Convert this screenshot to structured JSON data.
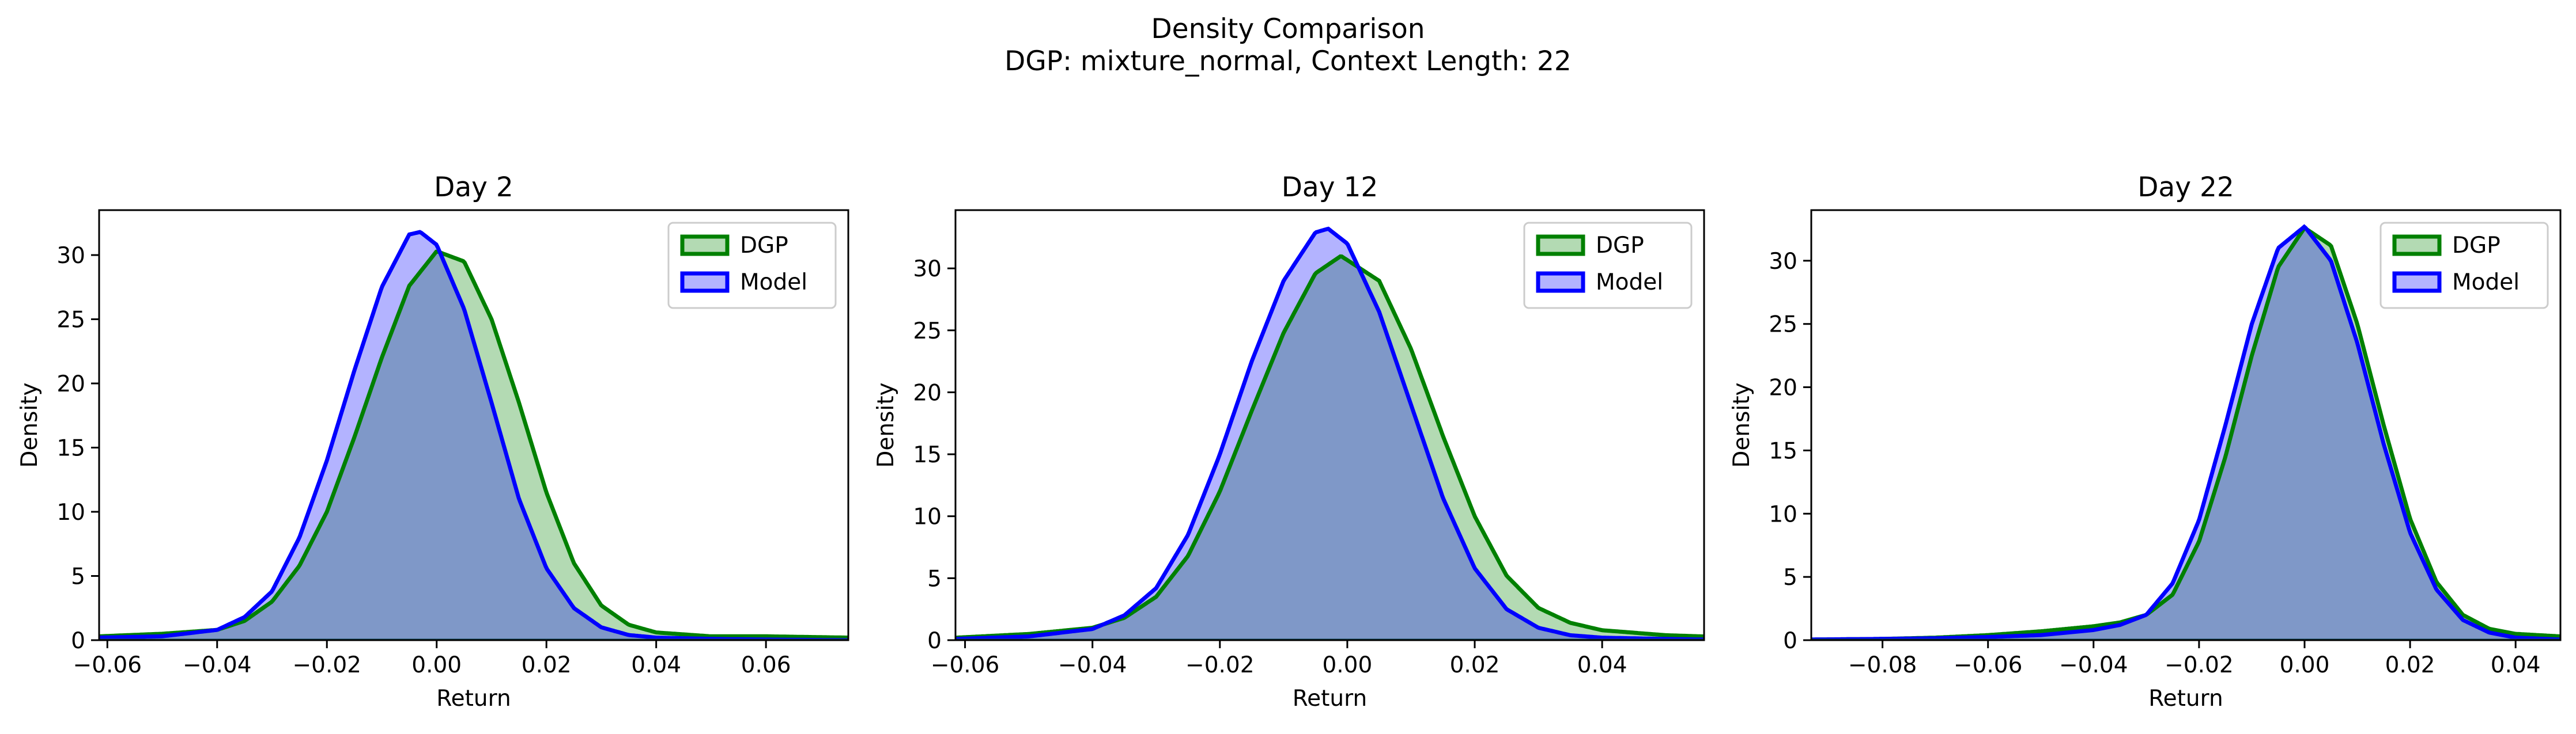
{
  "figure": {
    "title_line1": "Density Comparison",
    "title_line2": "DGP: mixture_normal, Context Length: 22"
  },
  "colors": {
    "dgp_line": "#008000",
    "dgp_fill": "#b3dab3",
    "model_line": "#0000ff",
    "model_fill": "#b3b3ff",
    "overlap_fill": "#7f98c8",
    "overlap_line": "#134f5c"
  },
  "chart_data": [
    {
      "type": "area",
      "title": "Day 2",
      "xlabel": "Return",
      "ylabel": "Density",
      "xlim": [
        -0.0615,
        0.075
      ],
      "ylim": [
        0,
        33.5
      ],
      "xticks": [
        -0.06,
        -0.04,
        -0.02,
        0.0,
        0.02,
        0.04,
        0.06
      ],
      "xtick_labels": [
        "−0.06",
        "−0.04",
        "−0.02",
        "0.00",
        "0.02",
        "0.04",
        "0.06"
      ],
      "yticks": [
        0,
        5,
        10,
        15,
        20,
        25,
        30
      ],
      "ytick_labels": [
        "0",
        "5",
        "10",
        "15",
        "20",
        "25",
        "30"
      ],
      "legend": "top-right",
      "series": [
        {
          "name": "DGP",
          "x": [
            -0.0615,
            -0.05,
            -0.04,
            -0.035,
            -0.03,
            -0.025,
            -0.02,
            -0.015,
            -0.01,
            -0.005,
            0.0,
            0.005,
            0.01,
            0.015,
            0.02,
            0.025,
            0.03,
            0.035,
            0.04,
            0.05,
            0.06,
            0.075
          ],
          "y": [
            0.3,
            0.5,
            0.8,
            1.5,
            3.0,
            5.8,
            10.0,
            15.8,
            22.0,
            27.6,
            30.3,
            29.5,
            25.0,
            18.5,
            11.5,
            6.0,
            2.7,
            1.2,
            0.6,
            0.3,
            0.3,
            0.2
          ]
        },
        {
          "name": "Model",
          "x": [
            -0.0615,
            -0.05,
            -0.04,
            -0.035,
            -0.03,
            -0.025,
            -0.02,
            -0.015,
            -0.01,
            -0.005,
            -0.003,
            0.0,
            0.005,
            0.01,
            0.015,
            0.02,
            0.025,
            0.03,
            0.035,
            0.04,
            0.05,
            0.06,
            0.075
          ],
          "y": [
            0.2,
            0.3,
            0.8,
            1.8,
            3.8,
            8.0,
            14.0,
            21.0,
            27.5,
            31.6,
            31.8,
            30.8,
            25.8,
            18.5,
            11.0,
            5.6,
            2.5,
            1.0,
            0.4,
            0.2,
            0.1,
            0.05,
            0.0
          ]
        }
      ]
    },
    {
      "type": "area",
      "title": "Day 12",
      "xlabel": "Return",
      "ylabel": "Density",
      "xlim": [
        -0.0615,
        0.056
      ],
      "ylim": [
        0,
        34.7
      ],
      "xticks": [
        -0.06,
        -0.04,
        -0.02,
        0.0,
        0.02,
        0.04
      ],
      "xtick_labels": [
        "−0.06",
        "−0.04",
        "−0.02",
        "0.00",
        "0.02",
        "0.04"
      ],
      "yticks": [
        0,
        5,
        10,
        15,
        20,
        25,
        30
      ],
      "ytick_labels": [
        "0",
        "5",
        "10",
        "15",
        "20",
        "25",
        "30"
      ],
      "legend": "top-right",
      "series": [
        {
          "name": "DGP",
          "x": [
            -0.0615,
            -0.05,
            -0.04,
            -0.035,
            -0.03,
            -0.025,
            -0.02,
            -0.015,
            -0.01,
            -0.005,
            -0.001,
            0.005,
            0.01,
            0.015,
            0.02,
            0.025,
            0.03,
            0.035,
            0.04,
            0.05,
            0.056
          ],
          "y": [
            0.2,
            0.5,
            1.0,
            1.8,
            3.5,
            6.8,
            12.0,
            18.5,
            24.8,
            29.6,
            31.0,
            29.0,
            23.5,
            16.5,
            10.0,
            5.2,
            2.6,
            1.4,
            0.8,
            0.4,
            0.3
          ]
        },
        {
          "name": "Model",
          "x": [
            -0.0615,
            -0.05,
            -0.04,
            -0.035,
            -0.03,
            -0.025,
            -0.02,
            -0.015,
            -0.01,
            -0.005,
            -0.003,
            0.0,
            0.005,
            0.01,
            0.015,
            0.02,
            0.025,
            0.03,
            0.035,
            0.04,
            0.05,
            0.056
          ],
          "y": [
            0.1,
            0.3,
            0.9,
            2.0,
            4.2,
            8.5,
            15.0,
            22.5,
            29.0,
            32.9,
            33.2,
            32.0,
            26.5,
            19.0,
            11.5,
            5.8,
            2.5,
            1.0,
            0.4,
            0.2,
            0.1,
            0.05
          ]
        }
      ]
    },
    {
      "type": "area",
      "title": "Day 22",
      "xlabel": "Return",
      "ylabel": "Density",
      "xlim": [
        -0.0935,
        0.0485
      ],
      "ylim": [
        0,
        34.0
      ],
      "xticks": [
        -0.08,
        -0.06,
        -0.04,
        -0.02,
        0.0,
        0.02,
        0.04
      ],
      "xtick_labels": [
        "−0.08",
        "−0.06",
        "−0.04",
        "−0.02",
        "0.00",
        "0.02",
        "0.04"
      ],
      "yticks": [
        0,
        5,
        10,
        15,
        20,
        25,
        30
      ],
      "ytick_labels": [
        "0",
        "5",
        "10",
        "15",
        "20",
        "25",
        "30"
      ],
      "legend": "top-right",
      "series": [
        {
          "name": "DGP",
          "x": [
            -0.0935,
            -0.08,
            -0.07,
            -0.06,
            -0.05,
            -0.04,
            -0.035,
            -0.03,
            -0.025,
            -0.02,
            -0.015,
            -0.01,
            -0.005,
            0.0,
            0.005,
            0.01,
            0.015,
            0.02,
            0.025,
            0.03,
            0.035,
            0.04,
            0.0485
          ],
          "y": [
            0.05,
            0.1,
            0.2,
            0.4,
            0.7,
            1.1,
            1.4,
            2.0,
            3.6,
            7.8,
            14.5,
            22.5,
            29.5,
            32.6,
            31.2,
            25.0,
            17.0,
            9.6,
            4.6,
            2.0,
            0.9,
            0.5,
            0.3
          ]
        },
        {
          "name": "Model",
          "x": [
            -0.0935,
            -0.08,
            -0.07,
            -0.06,
            -0.05,
            -0.04,
            -0.035,
            -0.03,
            -0.025,
            -0.02,
            -0.015,
            -0.01,
            -0.005,
            0.0,
            0.005,
            0.01,
            0.015,
            0.02,
            0.025,
            0.03,
            0.035,
            0.04,
            0.0485
          ],
          "y": [
            0.05,
            0.1,
            0.15,
            0.25,
            0.4,
            0.8,
            1.2,
            2.0,
            4.5,
            9.5,
            17.0,
            25.0,
            31.0,
            32.7,
            30.0,
            23.5,
            15.5,
            8.5,
            4.0,
            1.6,
            0.6,
            0.2,
            0.05
          ]
        }
      ]
    }
  ]
}
